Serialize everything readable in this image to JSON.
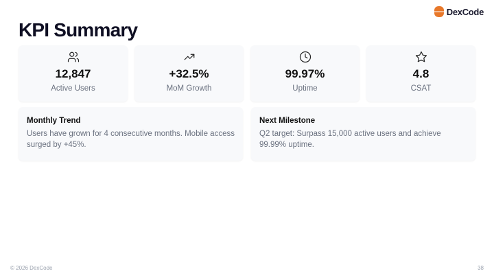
{
  "brand": {
    "name": "DexCode",
    "color": "#e8782a"
  },
  "title": "KPI Summary",
  "kpis": [
    {
      "icon": "users-icon",
      "value": "12,847",
      "label": "Active Users"
    },
    {
      "icon": "trending-up-icon",
      "value": "+32.5%",
      "label": "MoM Growth"
    },
    {
      "icon": "clock-icon",
      "value": "99.97%",
      "label": "Uptime"
    },
    {
      "icon": "star-icon",
      "value": "4.8",
      "label": "CSAT"
    }
  ],
  "notes": [
    {
      "title": "Monthly Trend",
      "body": "Users have grown for 4 consecutive months. Mobile access surged by +45%."
    },
    {
      "title": "Next Milestone",
      "body": "Q2 target: Surpass 15,000 active users and achieve 99.99% uptime."
    }
  ],
  "footer": {
    "copyright": "© 2026 DexCode",
    "page": "38"
  }
}
